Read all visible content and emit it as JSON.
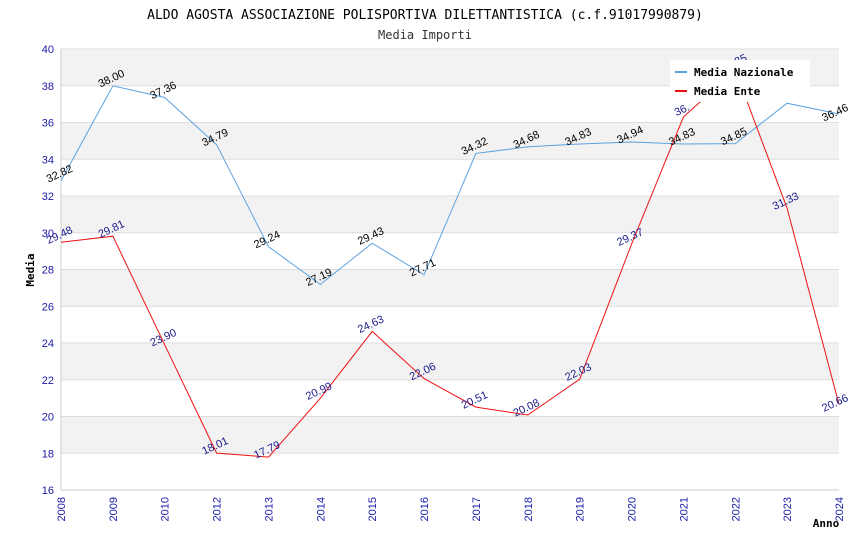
{
  "chart_data": {
    "type": "line",
    "title": "ALDO AGOSTA ASSOCIAZIONE POLISPORTIVA DILETTANTISTICA (c.f.91017990879)",
    "subtitle": "Media Importi",
    "xlabel": "Anno",
    "ylabel": "Media",
    "ylim": [
      16,
      40
    ],
    "yticks": [
      "16",
      "18",
      "20",
      "22",
      "24",
      "26",
      "28",
      "30",
      "32",
      "34",
      "36",
      "38",
      "40"
    ],
    "categories": [
      "2008",
      "2009",
      "2010",
      "2012",
      "2013",
      "2014",
      "2015",
      "2016",
      "2017",
      "2018",
      "2019",
      "2020",
      "2021",
      "2022",
      "2023",
      "2024"
    ],
    "grid": true,
    "legend_position": "top-right",
    "series": [
      {
        "name": "Media Nazionale",
        "color": "#5aa2e0",
        "label_color": "#000000",
        "values": [
          32.82,
          38.0,
          37.36,
          34.79,
          29.24,
          27.19,
          29.43,
          27.71,
          34.32,
          34.68,
          34.83,
          34.94,
          34.83,
          34.85,
          37.05,
          36.46
        ],
        "labels": [
          "32.82",
          "38.00",
          "37.36",
          "34.79",
          "29.24",
          "27.19",
          "29.43",
          "27.71",
          "34.32",
          "34.68",
          "34.83",
          "34.94",
          "34.83",
          "34.85",
          "",
          "36.46"
        ]
      },
      {
        "name": "Media Ente",
        "color": "#ee1111",
        "label_color": "#1a1a8c",
        "values": [
          29.48,
          29.81,
          23.9,
          18.01,
          17.79,
          20.99,
          24.63,
          22.06,
          20.51,
          20.08,
          22.03,
          29.37,
          36.3,
          38.85,
          31.33,
          20.66
        ],
        "labels": [
          "29.48",
          "29.81",
          "23.90",
          "18.01",
          "17.79",
          "20.99",
          "24.63",
          "22.06",
          "20.51",
          "20.08",
          "22.03",
          "29.37",
          "36.",
          "38.85",
          "31.33",
          "20.66"
        ]
      }
    ]
  }
}
